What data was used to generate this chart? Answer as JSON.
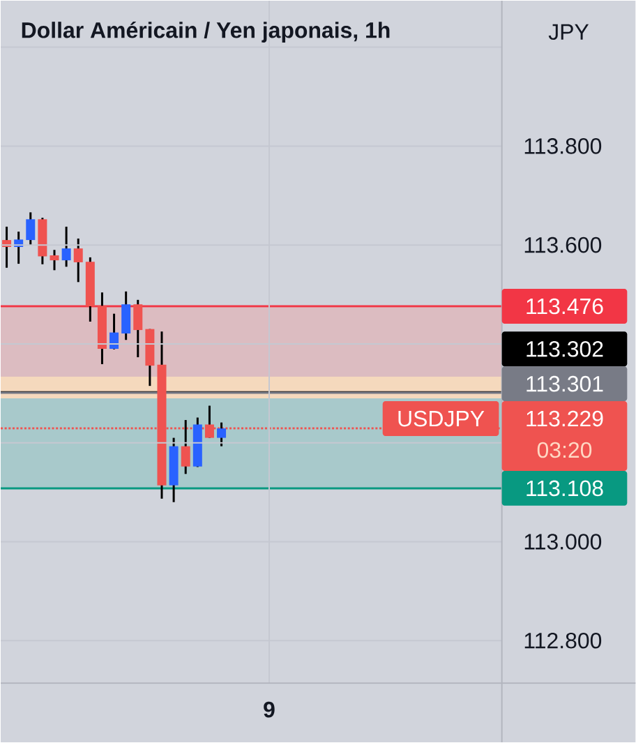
{
  "chart_data": {
    "type": "candlestick",
    "title": "Dollar Américain / Yen japonais, 1h",
    "ylabel": "JPY",
    "categories": [
      null,
      null,
      null,
      null,
      null,
      null,
      null,
      null,
      null,
      null,
      null,
      null,
      null,
      null,
      null,
      null,
      null,
      null,
      null,
      null,
      null,
      null,
      "9",
      null,
      null,
      null,
      null,
      null,
      null,
      null,
      null,
      null,
      null,
      null,
      null,
      null,
      null,
      null,
      null,
      null,
      null,
      null
    ],
    "ohlc": [
      [
        113.61,
        113.637,
        113.554,
        113.596
      ],
      [
        113.596,
        113.627,
        113.562,
        113.611
      ],
      [
        113.61,
        113.666,
        113.599,
        113.652
      ],
      [
        113.652,
        113.655,
        113.561,
        113.577
      ],
      [
        113.579,
        113.59,
        113.549,
        113.569
      ],
      [
        113.569,
        113.637,
        113.556,
        113.593
      ],
      [
        113.593,
        113.613,
        113.525,
        113.565
      ],
      [
        113.566,
        113.575,
        113.445,
        113.476
      ],
      [
        113.477,
        113.504,
        113.359,
        113.39
      ],
      [
        113.39,
        113.461,
        113.389,
        113.423
      ],
      [
        113.421,
        113.506,
        113.408,
        113.48
      ],
      [
        113.48,
        113.489,
        113.373,
        113.428
      ],
      [
        113.43,
        113.43,
        113.315,
        113.356
      ],
      [
        113.358,
        113.425,
        113.087,
        113.114
      ],
      [
        113.114,
        113.21,
        113.08,
        113.193
      ],
      [
        113.193,
        113.246,
        113.137,
        113.152
      ],
      [
        113.152,
        113.251,
        113.151,
        113.237
      ],
      [
        113.237,
        113.275,
        113.21,
        113.21
      ],
      [
        113.21,
        113.241,
        113.193,
        113.229
      ],
      null,
      null,
      null,
      null,
      null,
      null,
      null,
      null,
      null,
      null,
      null,
      null,
      null,
      null,
      null,
      null,
      null,
      null,
      null,
      null,
      null,
      null,
      null
    ],
    "colors": [
      "#ef5350",
      "#2962ff",
      "#2962ff",
      "#ef5350",
      "#ef5350",
      "#2962ff",
      "#ef5350",
      "#ef5350",
      "#ef5350",
      "#2962ff",
      "#2962ff",
      "#ef5350",
      "#ef5350",
      "#ef5350",
      "#2962ff",
      "#ef5350",
      "#2962ff",
      "#ef5350",
      "#2962ff",
      null,
      null,
      null,
      null,
      null,
      null,
      null,
      null,
      null,
      null,
      null,
      null,
      null,
      null,
      null,
      null,
      null,
      null,
      null,
      null,
      null,
      null,
      null
    ],
    "ylim": [
      112.714,
      114.094
    ],
    "yticks": [
      {
        "value": 112.8,
        "label": "112.800"
      },
      {
        "value": 113.0,
        "label": "113.000"
      },
      {
        "value": 113.2,
        "label": null
      },
      {
        "value": 113.4,
        "label": null
      },
      {
        "value": 113.6,
        "label": "113.600"
      },
      {
        "value": 113.8,
        "label": "113.800"
      },
      {
        "value": 114.0,
        "label": null
      }
    ],
    "grid": true,
    "bands": [
      {
        "axis": "y",
        "from": 113.301,
        "to": 113.476,
        "color": "#dcbcc1"
      },
      {
        "axis": "y",
        "from": 113.108,
        "to": 113.301,
        "color": "#a8c9cb"
      },
      {
        "axis": "y",
        "from": 113.29,
        "to": 113.334,
        "color": "#f5d9bd"
      }
    ],
    "ref_lines": [
      {
        "axis": "y",
        "value": 113.476,
        "label": "113.476",
        "color": "#f23645",
        "line_style": "solid"
      },
      {
        "axis": "y",
        "value": 113.302,
        "label": "113.302",
        "color": "#000000",
        "line_style": "solid"
      },
      {
        "axis": "y",
        "value": 113.301,
        "label": "113.301",
        "color": "#787b86",
        "line_style": "solid"
      },
      {
        "axis": "y",
        "value": 113.229,
        "label": "113.229",
        "color": "#ef5350",
        "line_style": "dotted"
      },
      {
        "axis": "y",
        "value": 113.108,
        "label": "113.108",
        "color": "#089981",
        "line_style": "solid"
      }
    ],
    "annotations": [
      {
        "text": "USDJPY",
        "y": 113.229
      },
      "03:20"
    ]
  }
}
